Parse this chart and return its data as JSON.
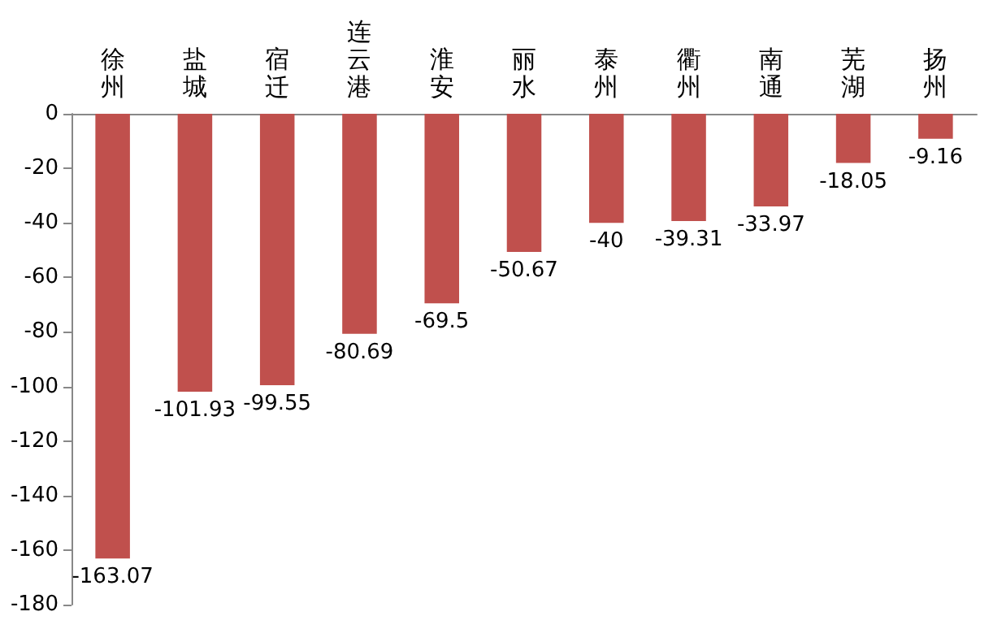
{
  "chart_data": {
    "type": "bar",
    "categories": [
      "徐州",
      "盐城",
      "宿迁",
      "连云港",
      "淮安",
      "丽水",
      "泰州",
      "衢州",
      "南通",
      "芜湖",
      "扬州"
    ],
    "values": [
      -163.07,
      -101.93,
      -99.55,
      -80.69,
      -69.5,
      -50.67,
      -40,
      -39.31,
      -33.97,
      -18.05,
      -9.16
    ],
    "color": "#c0504d",
    "ylim": [
      -180,
      0
    ],
    "yticks": [
      -180,
      -160,
      -140,
      -120,
      -100,
      -80,
      -60,
      -40,
      -20,
      0
    ],
    "grid": false,
    "data_labels": true
  }
}
